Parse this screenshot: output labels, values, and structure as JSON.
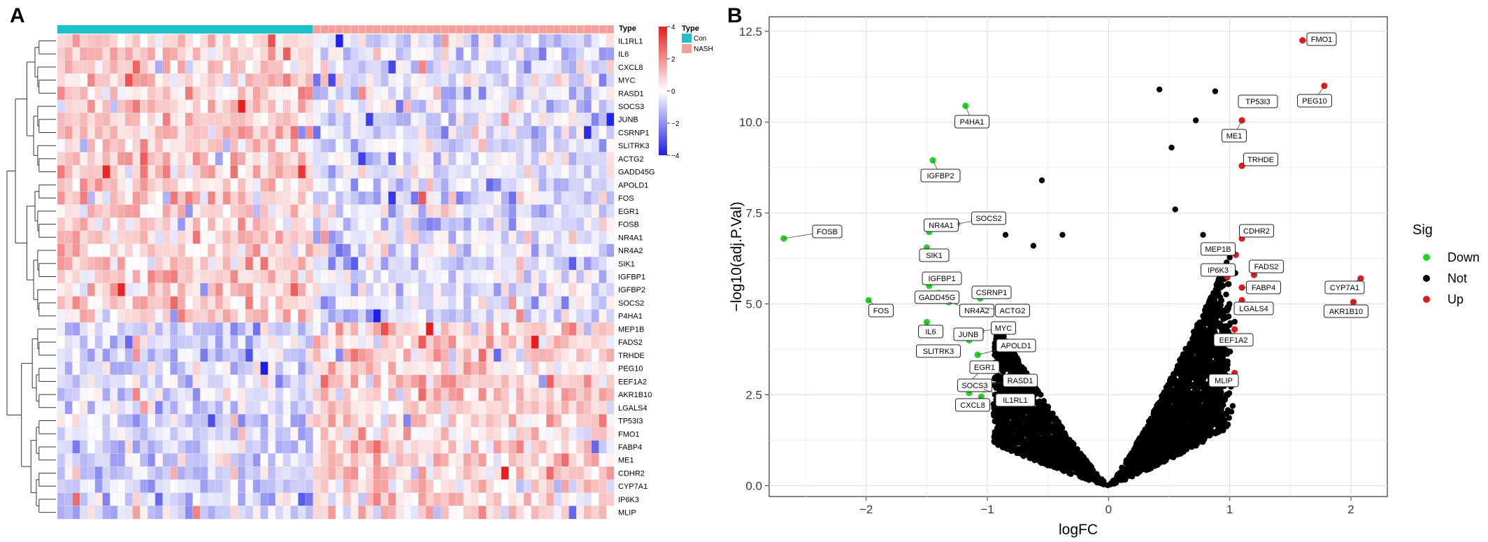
{
  "panels": {
    "a": "A",
    "b": "B"
  },
  "chart_data": [
    {
      "type": "heatmap",
      "panel": "A",
      "annotation_title": "Type",
      "groups": [
        {
          "name": "Con",
          "color": "#1fc0c8",
          "n": 34
        },
        {
          "name": "NASH",
          "color": "#f4a09a",
          "n": 40
        }
      ],
      "genes": [
        "IL1RL1",
        "IL6",
        "CXCL8",
        "MYC",
        "RASD1",
        "SOCS3",
        "JUNB",
        "CSRNP1",
        "SLITRK3",
        "ACTG2",
        "GADD45G",
        "APOLD1",
        "FOS",
        "EGR1",
        "FOSB",
        "NR4A1",
        "NR4A2",
        "SIK1",
        "IGFBP1",
        "IGFBP2",
        "SOCS2",
        "P4HA1",
        "MEP1B",
        "FADS2",
        "TRHDE",
        "PEG10",
        "EEF1A2",
        "AKR1B10",
        "LGALS4",
        "TP53I3",
        "FMO1",
        "FABP4",
        "ME1",
        "CDHR2",
        "CYP7A1",
        "IP6K3",
        "MLIP"
      ],
      "down_in_nash": [
        "IL1RL1",
        "IL6",
        "CXCL8",
        "MYC",
        "RASD1",
        "SOCS3",
        "JUNB",
        "CSRNP1",
        "SLITRK3",
        "ACTG2",
        "GADD45G",
        "APOLD1",
        "FOS",
        "EGR1",
        "FOSB",
        "NR4A1",
        "NR4A2",
        "SIK1",
        "IGFBP1",
        "IGFBP2",
        "SOCS2",
        "P4HA1"
      ],
      "colorbar": {
        "ticks": [
          4,
          2,
          0,
          -2,
          -4
        ],
        "low": "#1e1ee6",
        "mid": "#ffffff",
        "high": "#e81d1d"
      }
    },
    {
      "type": "scatter",
      "panel": "B",
      "xlabel": "logFC",
      "ylabel": "−log10(adj.P.Val)",
      "xlim": [
        -2.8,
        2.3
      ],
      "ylim": [
        -0.3,
        12.9
      ],
      "xticks": [
        -2,
        -1,
        0,
        1,
        2
      ],
      "xtick_labels": [
        "−2",
        "−1",
        "0",
        "1",
        "2"
      ],
      "yticks": [
        0,
        2.5,
        5,
        7.5,
        10,
        12.5
      ],
      "ytick_labels": [
        "0.0",
        "2.5",
        "5.0",
        "7.5",
        "10.0",
        "12.5"
      ],
      "grid": true,
      "legend": {
        "title": "Sig",
        "position": "right",
        "entries": [
          {
            "name": "Down",
            "color": "#22d322"
          },
          {
            "name": "Not",
            "color": "#000000"
          },
          {
            "name": "Up",
            "color": "#e31a1c"
          }
        ]
      },
      "labeled_points": [
        {
          "label": "FMO1",
          "x": 1.6,
          "y": 12.25,
          "sig": "Up"
        },
        {
          "label": "PEG10",
          "x": 1.78,
          "y": 11.0,
          "sig": "Up"
        },
        {
          "label": "TP53I3",
          "x": 1.1,
          "y": 10.5,
          "sig": "Up"
        },
        {
          "label": "ME1",
          "x": 1.1,
          "y": 10.05,
          "sig": "Up"
        },
        {
          "label": "TRHDE",
          "x": 1.1,
          "y": 8.8,
          "sig": "Up"
        },
        {
          "label": "CDHR2",
          "x": 1.1,
          "y": 6.8,
          "sig": "Up"
        },
        {
          "label": "MEP1B",
          "x": 1.05,
          "y": 6.35,
          "sig": "Up"
        },
        {
          "label": "IP6K3",
          "x": 0.98,
          "y": 5.75,
          "sig": "Up"
        },
        {
          "label": "FADS2",
          "x": 1.2,
          "y": 5.8,
          "sig": "Up"
        },
        {
          "label": "FABP4",
          "x": 1.1,
          "y": 5.45,
          "sig": "Up"
        },
        {
          "label": "LGALS4",
          "x": 1.1,
          "y": 5.1,
          "sig": "Up"
        },
        {
          "label": "CYP7A1",
          "x": 2.08,
          "y": 5.7,
          "sig": "Up"
        },
        {
          "label": "AKR1B10",
          "x": 2.02,
          "y": 5.05,
          "sig": "Up"
        },
        {
          "label": "EEF1A2",
          "x": 1.04,
          "y": 4.3,
          "sig": "Up"
        },
        {
          "label": "MLIP",
          "x": 1.04,
          "y": 3.1,
          "sig": "Up"
        },
        {
          "label": "P4HA1",
          "x": -1.18,
          "y": 10.45,
          "sig": "Down"
        },
        {
          "label": "IGFBP2",
          "x": -1.45,
          "y": 8.95,
          "sig": "Down"
        },
        {
          "label": "FOSB",
          "x": -2.68,
          "y": 6.8,
          "sig": "Down"
        },
        {
          "label": "NR4A1",
          "x": -1.48,
          "y": 6.98,
          "sig": "Down"
        },
        {
          "label": "SIK1",
          "x": -1.5,
          "y": 6.55,
          "sig": "Down"
        },
        {
          "label": "SOCS2",
          "x": -1.25,
          "y": 7.2,
          "sig": "Down"
        },
        {
          "label": "IGFBP1",
          "x": -1.48,
          "y": 5.5,
          "sig": "Down"
        },
        {
          "label": "GADD45G",
          "x": -1.4,
          "y": 5.3,
          "sig": "Down"
        },
        {
          "label": "FOS",
          "x": -1.98,
          "y": 5.1,
          "sig": "Down"
        },
        {
          "label": "CSRNP1",
          "x": -1.06,
          "y": 5.15,
          "sig": "Down"
        },
        {
          "label": "NR4A2",
          "x": -1.32,
          "y": 5.05,
          "sig": "Down"
        },
        {
          "label": "ACTG2",
          "x": -1.06,
          "y": 4.9,
          "sig": "Down"
        },
        {
          "label": "IL6",
          "x": -1.5,
          "y": 4.5,
          "sig": "Down"
        },
        {
          "label": "MYC",
          "x": -1.05,
          "y": 4.25,
          "sig": "Down"
        },
        {
          "label": "JUNB",
          "x": -1.15,
          "y": 4.0,
          "sig": "Down"
        },
        {
          "label": "APOLD1",
          "x": -1.08,
          "y": 3.6,
          "sig": "Down"
        },
        {
          "label": "SLITRK3",
          "x": -1.35,
          "y": 3.6,
          "sig": "Down"
        },
        {
          "label": "EGR1",
          "x": -1.15,
          "y": 2.85,
          "sig": "Down"
        },
        {
          "label": "RASD1",
          "x": -1.1,
          "y": 2.75,
          "sig": "Down"
        },
        {
          "label": "SOCS3",
          "x": -1.15,
          "y": 2.55,
          "sig": "Down"
        },
        {
          "label": "CXCL8",
          "x": -1.05,
          "y": 2.45,
          "sig": "Down"
        },
        {
          "label": "IL1RL1",
          "x": -1.03,
          "y": 2.65,
          "sig": "Down"
        }
      ],
      "extra_not_points": [
        {
          "x": 0.42,
          "y": 10.9
        },
        {
          "x": 0.88,
          "y": 10.85
        },
        {
          "x": 0.72,
          "y": 10.05
        },
        {
          "x": 0.52,
          "y": 9.3
        },
        {
          "x": 0.55,
          "y": 7.6
        },
        {
          "x": -0.55,
          "y": 8.4
        },
        {
          "x": -0.62,
          "y": 6.6
        },
        {
          "x": -0.85,
          "y": 6.9
        },
        {
          "x": -0.38,
          "y": 6.9
        },
        {
          "x": 0.78,
          "y": 6.9
        }
      ]
    }
  ]
}
